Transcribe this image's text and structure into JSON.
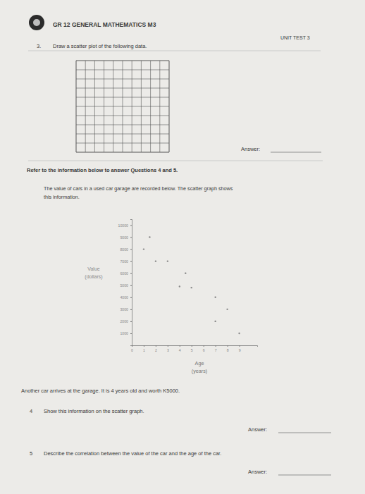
{
  "header": {
    "title": "GR 12 GENERAL MATHEMATICS M3",
    "test": "UNIT TEST 3"
  },
  "question_3": {
    "number": "3.",
    "text": "Draw a scatter plot of the following data.",
    "answer_label": "Answer:"
  },
  "instructions": {
    "heading": "Refer to the information below to answer Questions 4 and 5.",
    "lines": [
      "The value of cars in a used car garage are recorded below.  The scatter graph shows",
      "this information."
    ]
  },
  "chart_data": {
    "type": "scatter",
    "xlabel": [
      "Age",
      "(years)"
    ],
    "ylabel": [
      "Value",
      "(dollars)"
    ],
    "x": [
      1,
      1.5,
      2,
      3,
      4.5,
      4,
      5,
      7,
      8,
      7,
      9
    ],
    "values": [
      8000,
      9000,
      7000,
      7000,
      6000,
      4900,
      4800,
      4000,
      3000,
      2000,
      1000
    ],
    "color": "#8a8a8a",
    "marker": "circle",
    "xlim": [
      0,
      10.5
    ],
    "ylim": [
      0,
      10500
    ],
    "xticks": [
      0,
      1,
      2,
      3,
      4,
      5,
      6,
      7,
      8,
      9
    ],
    "yticks": [
      1000,
      2000,
      3000,
      4000,
      5000,
      6000,
      7000,
      8000,
      9000,
      10000
    ],
    "grid": false
  },
  "scenario": "Another car arrives at the garage. It is 4 years old and worth K5000.",
  "questions": [
    {
      "number": "4",
      "text": "Show this information on the scatter graph.",
      "answer_label": "Answer:"
    },
    {
      "number": "5",
      "text": "Describe the correlation between the value of the car and the age of the car.",
      "answer_label": "Answer:"
    }
  ]
}
